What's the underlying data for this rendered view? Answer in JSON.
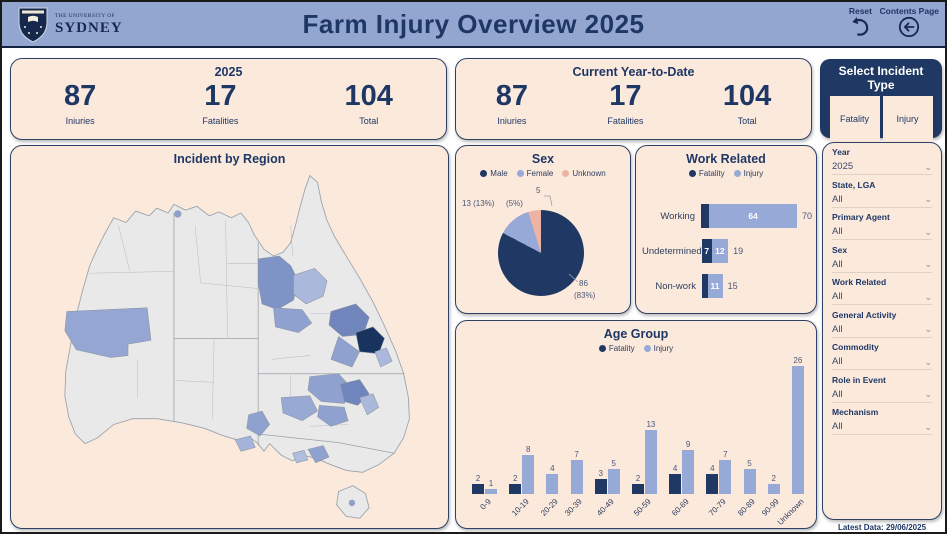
{
  "header": {
    "university_small": "THE UNIVERSITY OF",
    "university_name": "SYDNEY",
    "title": "Farm Injury Overview 2025",
    "reset_label": "Reset",
    "contents_label": "Contents Page"
  },
  "summary_cards": [
    {
      "title": "2025",
      "stats": [
        {
          "value": "87",
          "label": "Iniuries"
        },
        {
          "value": "17",
          "label": "Fatalities"
        },
        {
          "value": "104",
          "label": "Total"
        }
      ]
    },
    {
      "title": "Current Year-to-Date",
      "stats": [
        {
          "value": "87",
          "label": "Iniuries"
        },
        {
          "value": "17",
          "label": "Fatalities"
        },
        {
          "value": "104",
          "label": "Total"
        }
      ]
    }
  ],
  "incident_type": {
    "title": "Select Incident Type",
    "buttons": [
      "Fatality",
      "Injury"
    ]
  },
  "map": {
    "title": "Incident by Region"
  },
  "chart_data": [
    {
      "type": "pie",
      "title": "Sex",
      "labels": [
        "Male",
        "Female",
        "Unknown"
      ],
      "values": [
        86,
        13,
        5
      ],
      "colors": [
        "#1f3864",
        "#97a9d6",
        "#efb3a4"
      ],
      "callouts": {
        "unknown_count": "5",
        "unknown_pct": "(5%)",
        "female": "13 (13%)",
        "male_count": "86",
        "male_pct": "(83%)"
      },
      "legend_position": "top"
    },
    {
      "type": "bar",
      "orientation": "horizontal",
      "stacked": true,
      "title": "Work Related",
      "categories": [
        "Working",
        "Undetermined",
        "Non-work"
      ],
      "series": [
        {
          "name": "Fatality",
          "color": "#1f3864",
          "values": [
            6,
            7,
            4
          ]
        },
        {
          "name": "Injury",
          "color": "#97a9d6",
          "values": [
            64,
            12,
            11
          ]
        }
      ],
      "totals": [
        70,
        19,
        15
      ],
      "xlim": [
        0,
        70
      ],
      "legend_position": "top"
    },
    {
      "type": "bar",
      "orientation": "vertical",
      "stacked": false,
      "title": "Age Group",
      "categories": [
        "0-9",
        "10-19",
        "20-29",
        "30-39",
        "40-49",
        "50-59",
        "60-69",
        "70-79",
        "80-89",
        "90-99",
        "Unknown"
      ],
      "series": [
        {
          "name": "Fatality",
          "color": "#1f3864",
          "values": [
            2,
            2,
            0,
            0,
            3,
            2,
            4,
            4,
            0,
            0,
            0
          ]
        },
        {
          "name": "Injury",
          "color": "#97a9d6",
          "values": [
            1,
            8,
            4,
            7,
            5,
            13,
            9,
            7,
            5,
            2,
            26
          ]
        }
      ],
      "ylim": [
        0,
        26
      ],
      "legend_position": "top"
    }
  ],
  "filters": {
    "items": [
      {
        "label": "Year",
        "value": "2025"
      },
      {
        "label": "State, LGA",
        "value": "All"
      },
      {
        "label": "Primary Agent",
        "value": "All"
      },
      {
        "label": "Sex",
        "value": "All"
      },
      {
        "label": "Work Related",
        "value": "All"
      },
      {
        "label": "General Activity",
        "value": "All"
      },
      {
        "label": "Commodity",
        "value": "All"
      },
      {
        "label": "Role in Event",
        "value": "All"
      },
      {
        "label": "Mechanism",
        "value": "All"
      }
    ],
    "latest_data": "Latest Data: 29/06/2025"
  },
  "colors": {
    "header_bg": "#93a6d0",
    "navy": "#1f3864",
    "card_bg": "#fbe9dc",
    "injury_blue": "#97a9d6",
    "unknown_pink": "#efb3a4",
    "map_gray": "#e9e9e9",
    "map_light": "#aab8dc",
    "map_medium": "#8fa2cf",
    "map_dark": "#7085bb",
    "map_darkest": "#17335e"
  }
}
